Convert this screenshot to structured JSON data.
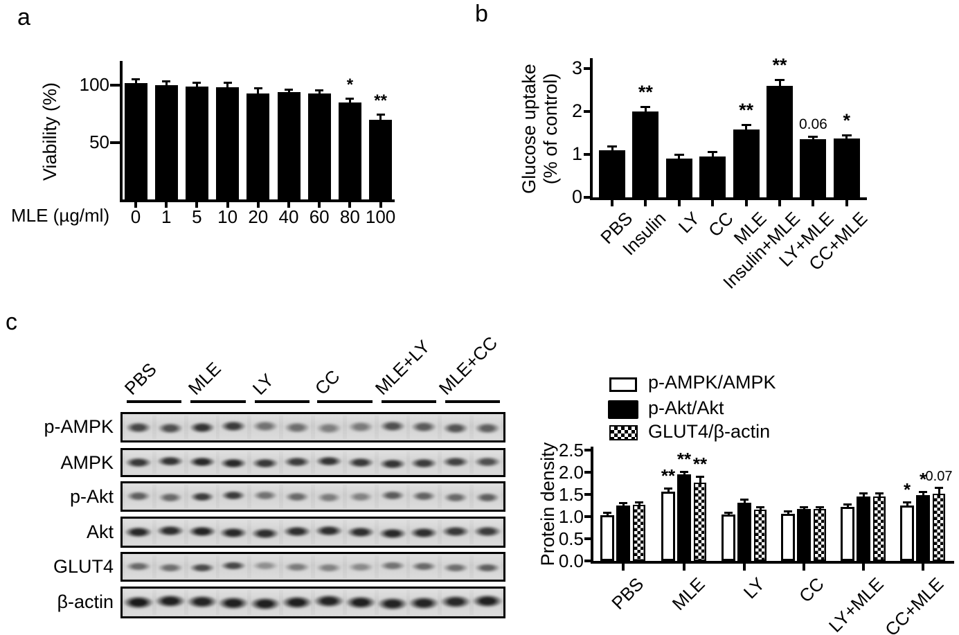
{
  "colors": {
    "bars": "#000000",
    "text": "#000000",
    "background": "#ffffff"
  },
  "panels": {
    "a": {
      "label": "a",
      "chart_data": {
        "type": "bar",
        "title": "",
        "xlabel": "MLE (µg/ml)",
        "ylabel": "Viability (%)",
        "categories": [
          "0",
          "1",
          "5",
          "10",
          "20",
          "40",
          "60",
          "80",
          "100"
        ],
        "values": [
          102,
          100,
          99,
          98,
          93,
          94,
          93,
          85,
          70
        ],
        "errors": [
          3,
          3,
          3,
          4,
          4,
          2,
          2,
          3,
          4
        ],
        "significance": [
          "",
          "",
          "",
          "",
          "",
          "",
          "",
          "*",
          "**"
        ],
        "yticks": [
          50,
          100
        ],
        "ylim": [
          0,
          120
        ],
        "grid": false,
        "bar_color": "#000000"
      }
    },
    "b": {
      "label": "b",
      "chart_data": {
        "type": "bar",
        "title": "",
        "xlabel": "",
        "ylabel": "Glucose uptake (% of control)",
        "ylabel_lines": [
          "Glucose uptake",
          "(% of control)"
        ],
        "categories": [
          "PBS",
          "Insulin",
          "LY",
          "CC",
          "MLE",
          "Insulin+MLE",
          "LY+MLE",
          "CC+MLE"
        ],
        "values": [
          1.1,
          2.0,
          0.9,
          0.95,
          1.58,
          2.6,
          1.35,
          1.37
        ],
        "errors": [
          0.08,
          0.1,
          0.08,
          0.1,
          0.1,
          0.12,
          0.06,
          0.06
        ],
        "significance": [
          "",
          "**",
          "",
          "",
          "**",
          "**",
          "0.06",
          "*"
        ],
        "yticks": [
          0,
          1,
          2,
          3
        ],
        "ylim": [
          0,
          3.2
        ],
        "grid": false,
        "bar_color": "#000000"
      }
    },
    "c": {
      "label": "c",
      "blot": {
        "group_labels": [
          "PBS",
          "MLE",
          "LY",
          "CC",
          "MLE+LY",
          "MLE+CC"
        ],
        "lanes_per_group": 2,
        "rows": [
          {
            "label": "p-AMPK",
            "band_intensities": [
              0.72,
              0.68,
              0.82,
              0.78,
              0.5,
              0.52,
              0.44,
              0.46,
              0.68,
              0.62,
              0.66,
              0.6
            ]
          },
          {
            "label": "AMPK",
            "band_intensities": [
              0.8,
              0.82,
              0.88,
              0.88,
              0.8,
              0.78,
              0.82,
              0.8,
              0.82,
              0.78,
              0.75,
              0.68
            ]
          },
          {
            "label": "p-Akt",
            "band_intensities": [
              0.6,
              0.55,
              0.78,
              0.78,
              0.5,
              0.55,
              0.45,
              0.42,
              0.62,
              0.58,
              0.55,
              0.6
            ]
          },
          {
            "label": "Akt",
            "band_intensities": [
              0.88,
              0.85,
              0.9,
              0.88,
              0.85,
              0.85,
              0.85,
              0.85,
              0.88,
              0.85,
              0.8,
              0.78
            ]
          },
          {
            "label": "GLUT4",
            "band_intensities": [
              0.55,
              0.52,
              0.7,
              0.72,
              0.35,
              0.45,
              0.42,
              0.38,
              0.5,
              0.55,
              0.52,
              0.6
            ]
          },
          {
            "label": "β-actin",
            "band_intensities": [
              0.95,
              0.92,
              0.9,
              0.92,
              0.92,
              0.93,
              0.9,
              0.92,
              0.9,
              0.9,
              0.88,
              0.92
            ]
          }
        ]
      },
      "chart_data": {
        "type": "bar",
        "title": "",
        "xlabel": "",
        "ylabel": "Protein density",
        "categories": [
          "PBS",
          "MLE",
          "LY",
          "CC",
          "LY+MLE",
          "CC+MLE"
        ],
        "series": [
          {
            "name": "p-AMPK/AMPK",
            "style": "white",
            "values": [
              1.03,
              1.57,
              1.04,
              1.07,
              1.22,
              1.25
            ],
            "errors": [
              0.05,
              0.06,
              0.04,
              0.04,
              0.05,
              0.07
            ],
            "significance": [
              "",
              "**",
              "",
              "",
              "",
              "*"
            ]
          },
          {
            "name": "p-Akt/Akt",
            "style": "black",
            "values": [
              1.25,
              1.95,
              1.32,
              1.17,
              1.45,
              1.48
            ],
            "errors": [
              0.05,
              0.05,
              0.05,
              0.04,
              0.07,
              0.06
            ],
            "significance": [
              "",
              "**",
              "",
              "",
              "",
              "*"
            ]
          },
          {
            "name": "GLUT4/β-actin",
            "style": "checkered",
            "values": [
              1.27,
              1.77,
              1.15,
              1.17,
              1.45,
              1.52
            ],
            "errors": [
              0.05,
              0.12,
              0.05,
              0.04,
              0.07,
              0.12
            ],
            "significance": [
              "",
              "**",
              "",
              "",
              "",
              "0.07"
            ]
          }
        ],
        "yticks": [
          "0.0",
          "0.5",
          "1.0",
          "1.5",
          "2.0",
          "2.5"
        ],
        "ylim": [
          0,
          2.5
        ],
        "grid": false,
        "legend_position": "top"
      }
    }
  }
}
